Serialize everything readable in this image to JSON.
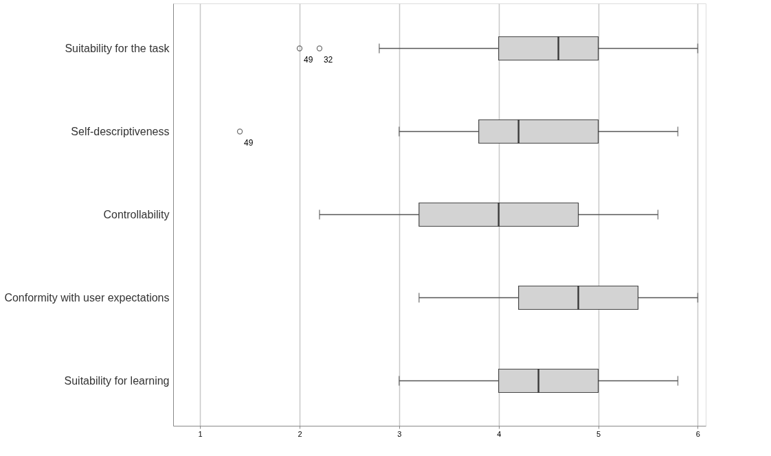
{
  "chart_data": {
    "type": "box",
    "orientation": "horizontal",
    "categories": [
      "Suitability for the task",
      "Self-descriptiveness",
      "Controllability",
      "Conformity with user expectations",
      "Suitability for learning"
    ],
    "boxes": [
      {
        "low": 2.8,
        "q1": 4,
        "median": 4.6,
        "q3": 5,
        "high": 6,
        "outliers": [
          2,
          2.2
        ]
      },
      {
        "low": 3,
        "q1": 3.8,
        "median": 4.2,
        "q3": 5,
        "high": 5.8,
        "outliers": [
          1.4
        ]
      },
      {
        "low": 2.2,
        "q1": 3.2,
        "median": 4,
        "q3": 4.8,
        "high": 5.6
      },
      {
        "low": 3.2,
        "q1": 4.2,
        "median": 4.8,
        "q3": 5.4,
        "high": 6
      },
      {
        "low": 3,
        "q1": 4,
        "median": 4.4,
        "q3": 5,
        "high": 5.8
      }
    ],
    "colors": [
      "#d3d3d3",
      "#d3d3d3",
      "#d3d3d3",
      "#d3d3d3",
      "#d3d3d3"
    ],
    "xlim": [
      0.73,
      6.08
    ],
    "xticks": [
      1,
      2,
      3,
      4,
      5,
      6
    ],
    "grid": "x",
    "annotations": [
      "49",
      "32",
      "49"
    ]
  }
}
